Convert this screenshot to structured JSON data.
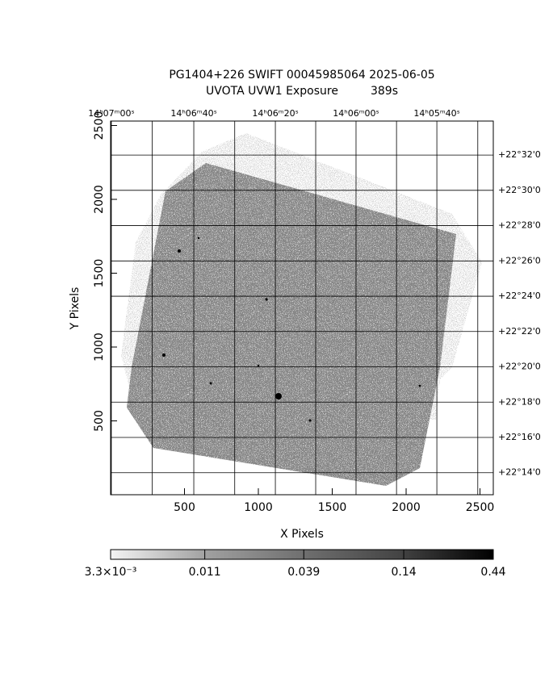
{
  "chart_data": {
    "type": "image",
    "title": [
      "PG1404+226 SWIFT 00045985064 2025-06-05",
      "UVOTA UVW1 Exposure         389s"
    ],
    "x_label": "X Pixels",
    "y_label": "Y Pixels",
    "xlim": [
      0,
      2590
    ],
    "ylim": [
      0,
      2530
    ],
    "xticks": [
      500,
      1000,
      1500,
      2000,
      2500
    ],
    "yticks": [
      500,
      1000,
      1500,
      2000,
      2500
    ],
    "x2ticks": [
      {
        "value": 5,
        "label": "14ʰ07ᵐ00ˢ"
      },
      {
        "value": 563,
        "label": "14ʰ06ᵐ40ˢ"
      },
      {
        "value": 1115,
        "label": "14ʰ06ᵐ20ˢ"
      },
      {
        "value": 1661,
        "label": "14ʰ06ᵐ00ˢ"
      },
      {
        "value": 2208,
        "label": "14ʰ05ᵐ40ˢ"
      }
    ],
    "x2grid": [
      5,
      282,
      563,
      840,
      1115,
      1388,
      1661,
      1935,
      2208,
      2485
    ],
    "y2ticks": [
      {
        "value": 2300,
        "label": "+22°32'0"
      },
      {
        "value": 2061,
        "label": "+22°30'0"
      },
      {
        "value": 1822,
        "label": "+22°28'0"
      },
      {
        "value": 1583,
        "label": "+22°26'0"
      },
      {
        "value": 1344,
        "label": "+22°24'0"
      },
      {
        "value": 1105,
        "label": "+22°22'0"
      },
      {
        "value": 866,
        "label": "+22°20'0"
      },
      {
        "value": 627,
        "label": "+22°18'0"
      },
      {
        "value": 388,
        "label": "+22°16'0"
      },
      {
        "value": 149,
        "label": "+22°14'0"
      }
    ],
    "grid": true,
    "colorbar": {
      "scale": "log",
      "clim": [
        0.0033,
        0.44
      ],
      "ticks": [
        {
          "value": 0.0033,
          "label": "3.3×10⁻³"
        },
        0.011,
        0.039,
        0.14,
        0.44
      ]
    }
  }
}
